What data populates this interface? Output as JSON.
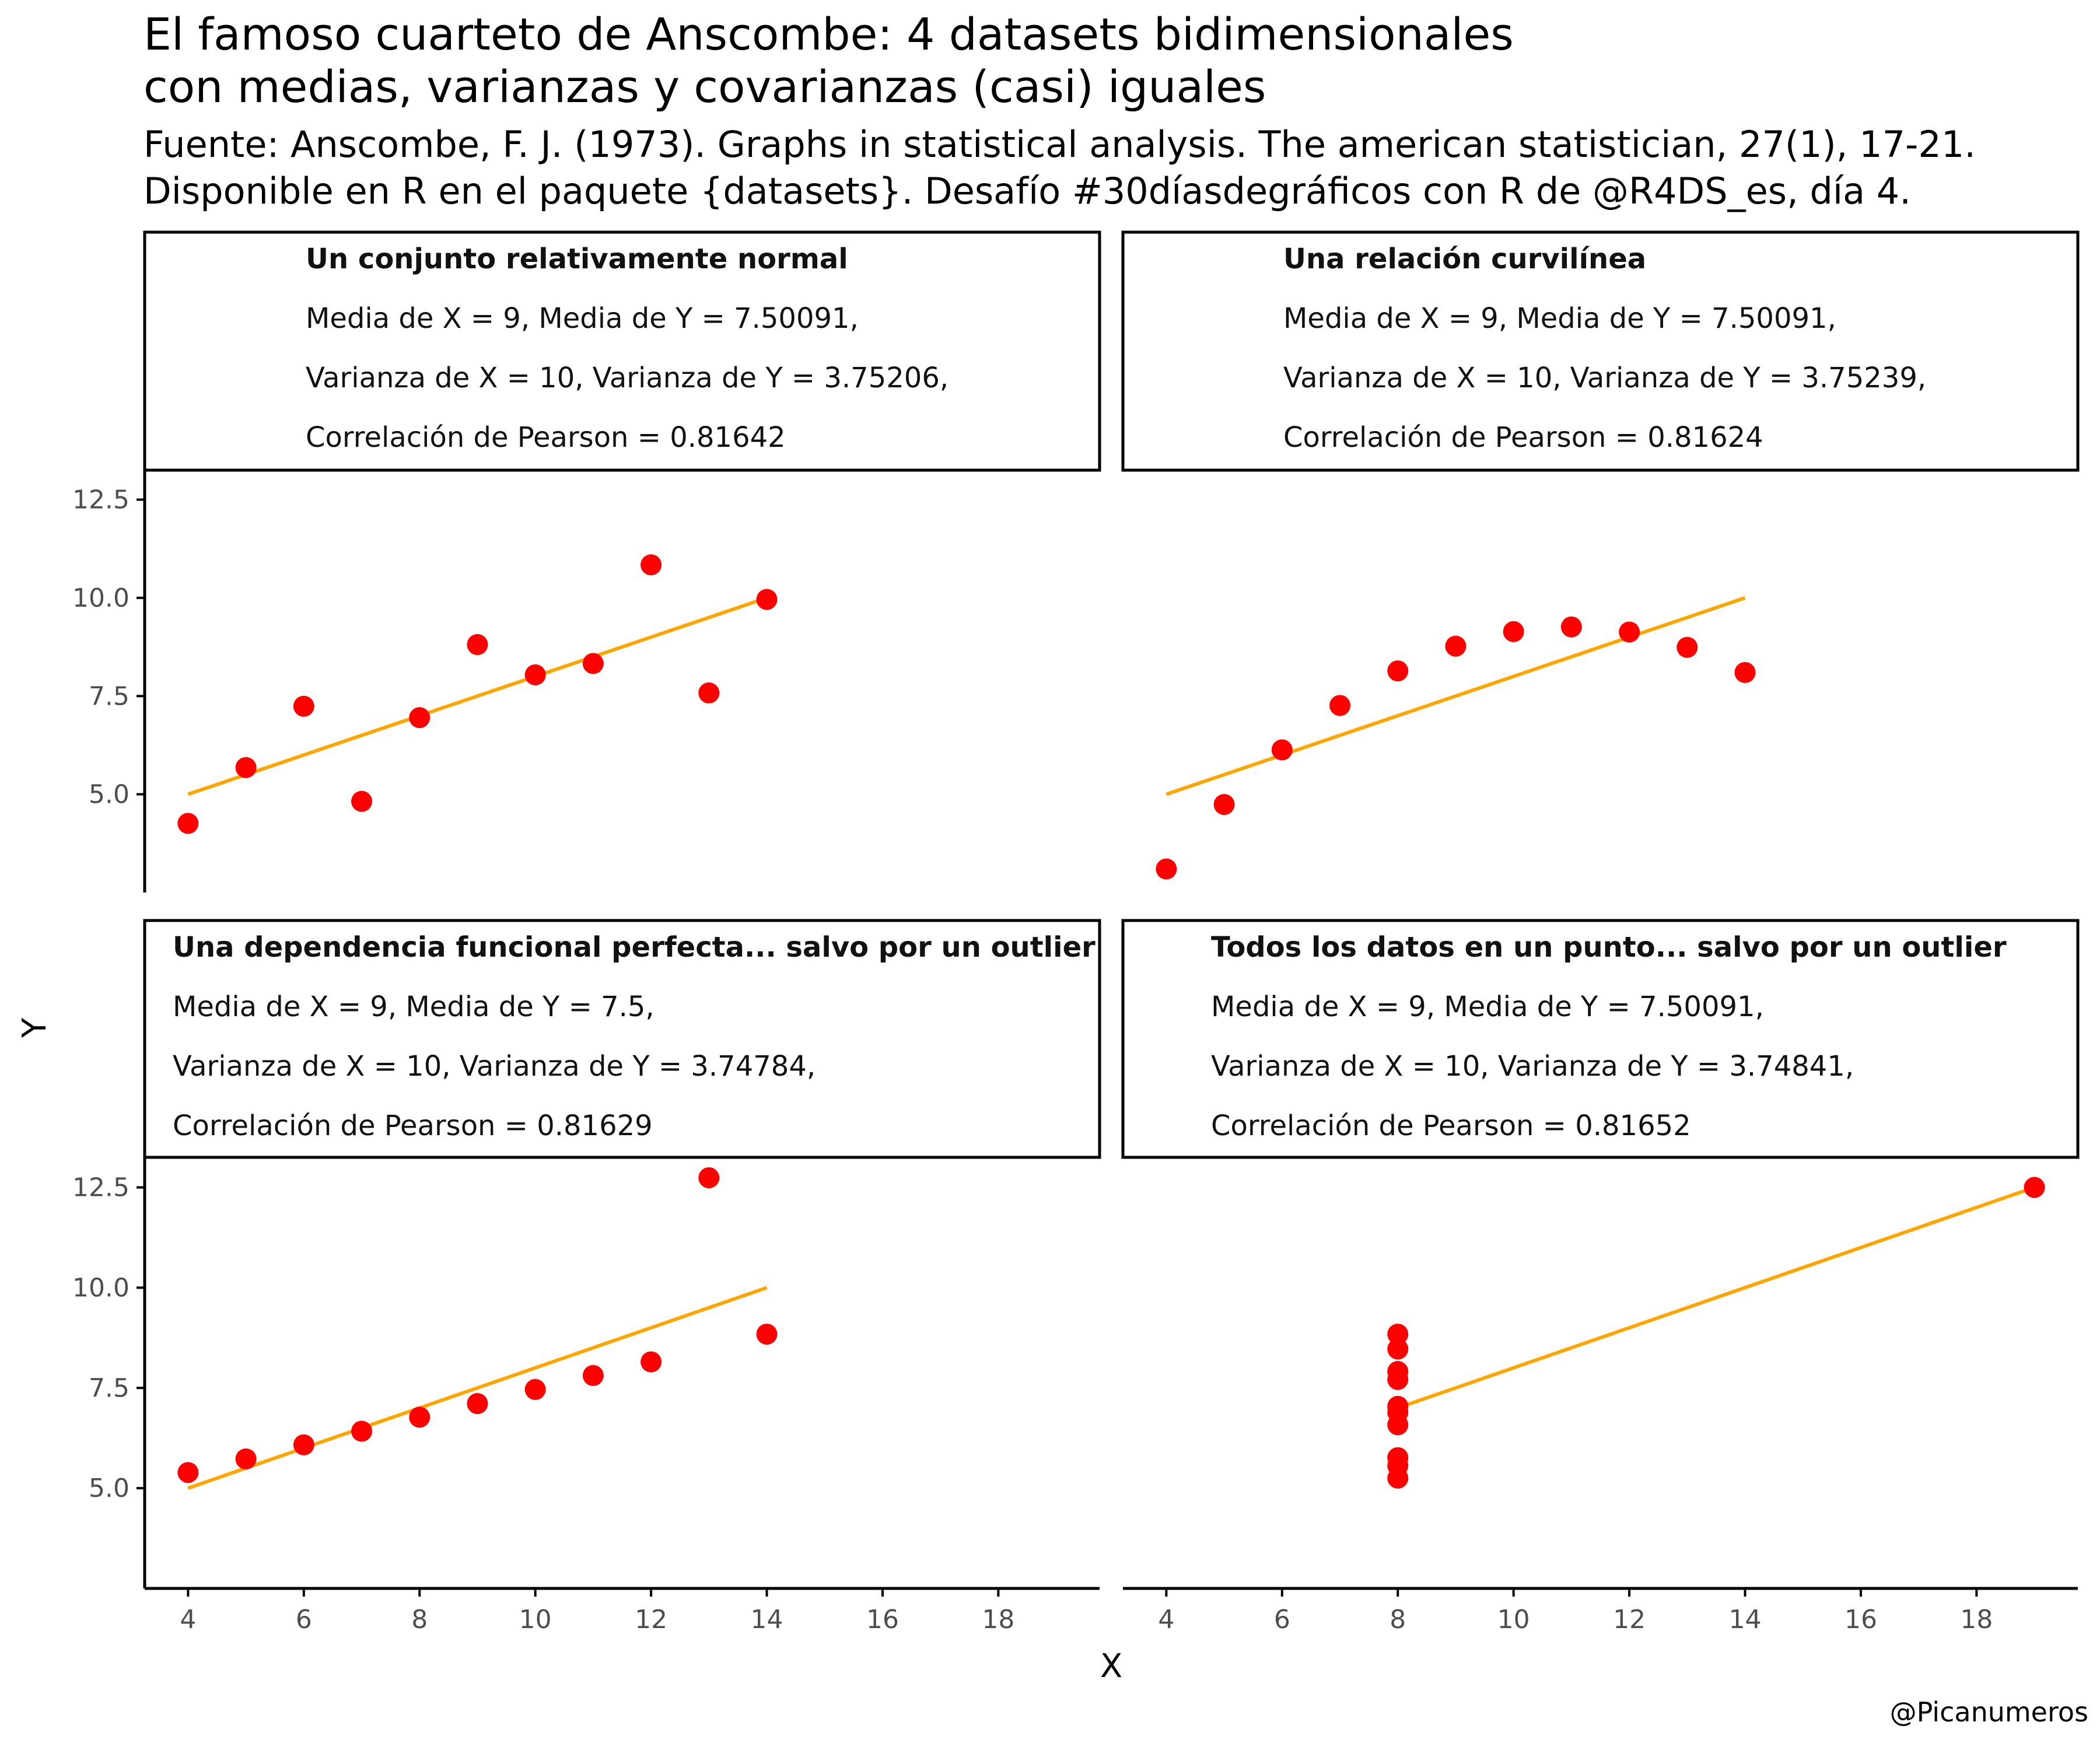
{
  "title": [
    "El famoso cuarteto de Anscombe: 4 datasets bidimensionales",
    "con medias, varianzas y covarianzas (casi) iguales"
  ],
  "subtitle": [
    "Fuente: Anscombe, F. J. (1973). Graphs in statistical analysis. The american statistician, 27(1), 17-21.",
    "Disponible en R en el paquete {datasets}. Desafío #30díasdegráficos con R de @R4DS_es, día 4."
  ],
  "caption": "@Picanumeros",
  "colors": {
    "points": "#ff0000",
    "fit_line": "#ffa500",
    "axis": "#000000",
    "tick_text": "#4d4d4d"
  },
  "chart_data": {
    "type": "scatter",
    "xlabel": "X",
    "ylabel": "Y",
    "xlim": [
      3.25,
      19.75
    ],
    "ylim": [
      2.5,
      13.25
    ],
    "x_ticks": [
      4,
      6,
      8,
      10,
      12,
      14,
      16,
      18
    ],
    "y_ticks": [
      5.0,
      7.5,
      10.0,
      12.5
    ],
    "y_tick_labels": [
      "5.0",
      "7.5",
      "10.0",
      "12.5"
    ],
    "grid": false,
    "panels": [
      {
        "title": "Un conjunto relativamente normal",
        "stats": [
          "Media de X = 9, Media de Y = 7.50091,",
          "Varianza de X = 10, Varianza de Y = 3.75206,",
          "Correlación de Pearson = 0.81642"
        ],
        "x": [
          10,
          8,
          13,
          9,
          11,
          14,
          6,
          4,
          12,
          7,
          5
        ],
        "y": [
          8.04,
          6.95,
          7.58,
          8.81,
          8.33,
          9.96,
          7.24,
          4.26,
          10.84,
          4.82,
          5.68
        ],
        "fit": {
          "x": [
            4,
            14
          ],
          "y": [
            5.0,
            10.0
          ]
        }
      },
      {
        "title": "Una relación curvilínea",
        "stats": [
          "Media de X = 9, Media de Y = 7.50091,",
          "Varianza de X = 10, Varianza de Y = 3.75239,",
          "Correlación de Pearson = 0.81624"
        ],
        "x": [
          10,
          8,
          13,
          9,
          11,
          14,
          6,
          4,
          12,
          7,
          5
        ],
        "y": [
          9.14,
          8.14,
          8.74,
          8.77,
          9.26,
          8.1,
          6.13,
          3.1,
          9.13,
          7.26,
          4.74
        ],
        "fit": {
          "x": [
            4,
            14
          ],
          "y": [
            5.0,
            10.0
          ]
        }
      },
      {
        "title": "Una dependencia funcional perfecta... salvo por un outlier",
        "stats": [
          "Media de X = 9, Media de Y = 7.5,",
          "Varianza de X = 10, Varianza de Y = 3.74784,",
          "Correlación de Pearson = 0.81629"
        ],
        "x": [
          10,
          8,
          13,
          9,
          11,
          14,
          6,
          4,
          12,
          7,
          5
        ],
        "y": [
          7.46,
          6.77,
          12.74,
          7.11,
          7.81,
          8.84,
          6.08,
          5.39,
          8.15,
          6.42,
          5.73
        ],
        "fit": {
          "x": [
            4,
            14
          ],
          "y": [
            5.0,
            10.0
          ]
        }
      },
      {
        "title": "Todos los datos en un punto... salvo por un outlier",
        "stats": [
          "Media de X = 9, Media de Y = 7.50091,",
          "Varianza de X = 10, Varianza de Y = 3.74841,",
          "Correlación de Pearson = 0.81652"
        ],
        "x": [
          8,
          8,
          8,
          8,
          8,
          8,
          8,
          19,
          8,
          8,
          8
        ],
        "y": [
          6.58,
          5.76,
          7.71,
          8.84,
          8.47,
          7.04,
          5.25,
          12.5,
          5.56,
          7.91,
          6.89
        ],
        "fit": {
          "x": [
            8,
            19
          ],
          "y": [
            7.0,
            12.5
          ]
        }
      }
    ]
  }
}
